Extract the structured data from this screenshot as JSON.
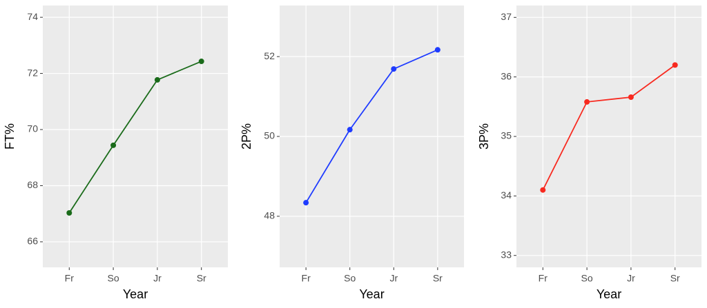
{
  "chart_data": [
    {
      "type": "line",
      "categories": [
        "Fr",
        "So",
        "Jr",
        "Sr"
      ],
      "x_label": "Year",
      "y_label": "FT%",
      "series": [
        {
          "color": "#1a6b1a",
          "values": [
            67.03,
            69.44,
            71.77,
            72.43
          ]
        }
      ],
      "ylim": [
        65.09,
        74.42
      ],
      "yticks": [
        66,
        68,
        70,
        72,
        74
      ],
      "grid": true
    },
    {
      "type": "line",
      "categories": [
        "Fr",
        "So",
        "Jr",
        "Sr"
      ],
      "x_label": "Year",
      "y_label": "2P%",
      "series": [
        {
          "color": "#1f3cff",
          "values": [
            48.34,
            50.17,
            51.69,
            52.17
          ]
        }
      ],
      "ylim": [
        46.72,
        53.28
      ],
      "yticks": [
        48,
        50,
        52
      ],
      "grid": true
    },
    {
      "type": "line",
      "categories": [
        "Fr",
        "So",
        "Jr",
        "Sr"
      ],
      "x_label": "Year",
      "y_label": "3P%",
      "series": [
        {
          "color": "#f8291f",
          "values": [
            34.1,
            35.58,
            35.66,
            36.2
          ]
        }
      ],
      "ylim": [
        32.8,
        37.2
      ],
      "yticks": [
        33,
        34,
        35,
        36,
        37
      ],
      "grid": true
    }
  ]
}
